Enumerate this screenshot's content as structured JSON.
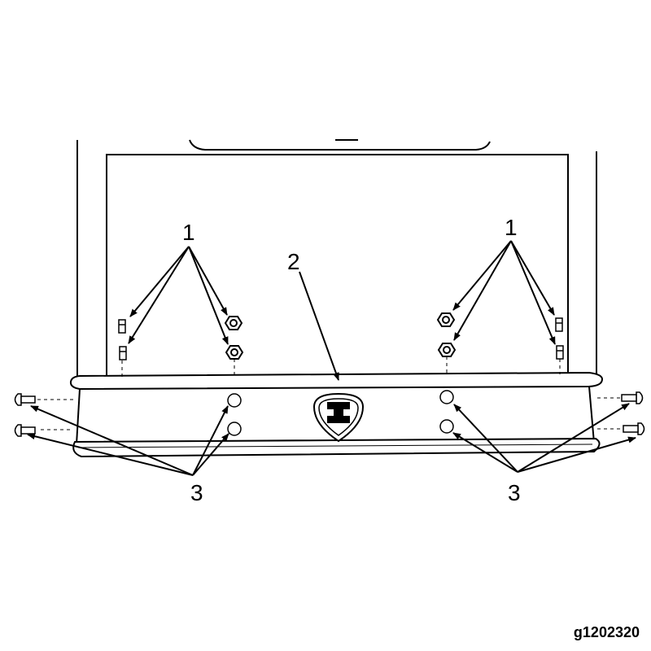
{
  "callouts": {
    "nuts_left": "1",
    "nuts_right": "1",
    "bumper": "2",
    "bolts_left": "3",
    "bolts_right": "3"
  },
  "figure_id": "g1202320",
  "colors": {
    "ink": "#000000",
    "background": "#ffffff"
  }
}
